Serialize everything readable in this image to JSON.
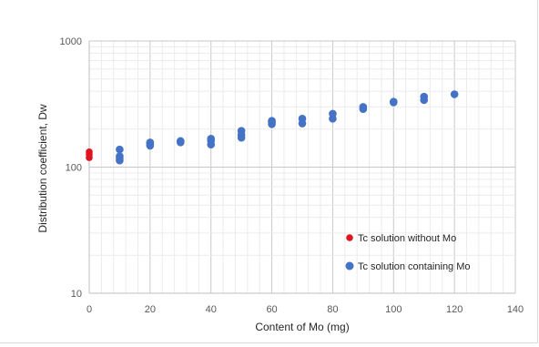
{
  "chart_data": {
    "type": "scatter",
    "title": "",
    "xlabel": "Content of Mo (mg)",
    "ylabel": "Distribution coefficient, Dw",
    "xlim": [
      0,
      140
    ],
    "ylim": [
      10,
      1000
    ],
    "yscale": "log",
    "grid": true,
    "legend_position": "bottom-right",
    "x_ticks": [
      "0",
      "20",
      "40",
      "60",
      "80",
      "100",
      "120",
      "140"
    ],
    "y_ticks": [
      "10",
      "100",
      "1000"
    ],
    "series": [
      {
        "name": "Tc solution without Mo",
        "color": "#e0141e",
        "points": [
          [
            0,
            132
          ],
          [
            0,
            126
          ],
          [
            0,
            119
          ]
        ]
      },
      {
        "name": "Tc solution containing Mo",
        "color": "#4472c4",
        "points": [
          [
            10,
            138
          ],
          [
            10,
            122
          ],
          [
            10,
            117
          ],
          [
            10,
            113
          ],
          [
            20,
            157
          ],
          [
            20,
            153
          ],
          [
            20,
            148
          ],
          [
            30,
            161
          ],
          [
            30,
            157
          ],
          [
            40,
            168
          ],
          [
            40,
            162
          ],
          [
            40,
            151
          ],
          [
            50,
            194
          ],
          [
            50,
            180
          ],
          [
            50,
            171
          ],
          [
            60,
            233
          ],
          [
            60,
            226
          ],
          [
            60,
            219
          ],
          [
            70,
            242
          ],
          [
            70,
            222
          ],
          [
            80,
            265
          ],
          [
            80,
            242
          ],
          [
            90,
            300
          ],
          [
            90,
            289
          ],
          [
            100,
            330
          ],
          [
            100,
            326
          ],
          [
            110,
            362
          ],
          [
            110,
            340
          ],
          [
            120,
            378
          ]
        ]
      }
    ]
  }
}
